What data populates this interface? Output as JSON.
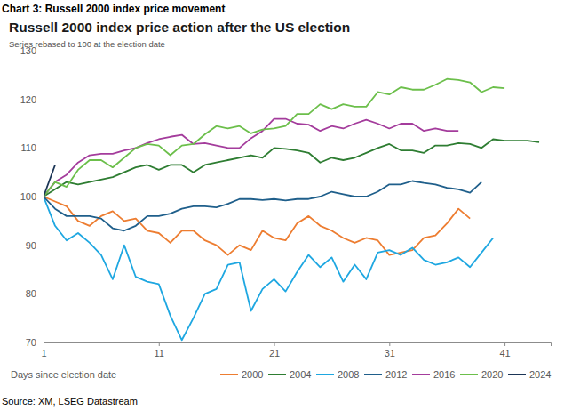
{
  "chart_data": {
    "type": "line",
    "caption": "Chart 3: Russell 2000 index price movement",
    "title": "Russell 2000 index price action after the US election",
    "subtitle": "Series rebased to 100 at the election date",
    "xlabel": "Days since election date",
    "source": "Source: XM, LSEG Datastream",
    "x": [
      1,
      2,
      3,
      4,
      5,
      6,
      7,
      8,
      9,
      10,
      11,
      12,
      13,
      14,
      15,
      16,
      17,
      18,
      19,
      20,
      21,
      22,
      23,
      24,
      25,
      26,
      27,
      28,
      29,
      30,
      31,
      32,
      33,
      34,
      35,
      36,
      37,
      38,
      39,
      40,
      41,
      42,
      43,
      44
    ],
    "xlim": [
      1,
      45
    ],
    "xticks": [
      1,
      11,
      21,
      31,
      41
    ],
    "ylim": [
      70,
      130
    ],
    "yticks": [
      70,
      80,
      90,
      100,
      110,
      120,
      130
    ],
    "grid": false,
    "legend": "bottom",
    "series": [
      {
        "name": "2000",
        "color": "#ed7d31",
        "values": [
          100,
          99,
          98,
          95,
          94,
          96,
          97,
          95,
          95.5,
          93,
          92.5,
          90.5,
          93,
          93,
          91,
          90,
          88,
          90,
          89,
          93,
          91.5,
          91,
          94.5,
          96,
          94,
          93,
          91.5,
          90.5,
          91.5,
          91,
          88,
          88.5,
          89,
          91.5,
          92,
          94.5,
          97.5,
          95.5,
          null,
          null,
          null,
          null,
          null,
          null
        ]
      },
      {
        "name": "2004",
        "color": "#2e7d32",
        "values": [
          100,
          101.5,
          103,
          102.5,
          103,
          103.5,
          104,
          105,
          106,
          106.5,
          105.5,
          106.5,
          106.5,
          105,
          106.5,
          107,
          107.5,
          108,
          108.5,
          108,
          110,
          109.8,
          109.5,
          109,
          107,
          108,
          107.5,
          108,
          109,
          110,
          110.8,
          109.5,
          109.5,
          109,
          110.5,
          110.5,
          111,
          110.8,
          110,
          111.8,
          111.5,
          111.5,
          111.5,
          111.2
        ]
      },
      {
        "name": "2008",
        "color": "#1ea7e1",
        "values": [
          100,
          94,
          91,
          92.5,
          90.5,
          88,
          83,
          90,
          83.5,
          82.5,
          82,
          75.5,
          70.5,
          75,
          80,
          81,
          86,
          86.5,
          76.5,
          81,
          83,
          80.5,
          84.5,
          88,
          85.5,
          87.5,
          82.5,
          86,
          83,
          88.5,
          89,
          88,
          89.5,
          87,
          86,
          86.5,
          87.5,
          85.5,
          88.5,
          91.5,
          null,
          null,
          null,
          null
        ]
      },
      {
        "name": "2012",
        "color": "#1f5f8b",
        "values": [
          100,
          97.5,
          96,
          96,
          96,
          95.5,
          93.5,
          93,
          94,
          96,
          96,
          96.5,
          97.5,
          98,
          98,
          97.8,
          98.5,
          99.5,
          99.5,
          99.3,
          99.5,
          99.2,
          99.5,
          99.5,
          100,
          101,
          100.5,
          100,
          100,
          101,
          102.5,
          102.5,
          103.2,
          102.8,
          102.5,
          101.8,
          101.5,
          100.8,
          103,
          null,
          null,
          null,
          null,
          null
        ]
      },
      {
        "name": "2016",
        "color": "#a43c9c",
        "values": [
          100,
          103,
          104.5,
          107,
          108.5,
          108.8,
          108.8,
          109.5,
          110,
          111,
          111.8,
          112.3,
          112.7,
          110.8,
          111,
          110.5,
          110,
          110,
          112,
          113.5,
          116,
          116,
          115,
          114.8,
          113.5,
          114.5,
          114,
          115,
          115.8,
          115,
          114,
          115,
          115,
          113.5,
          114,
          113.5,
          113.5,
          null,
          null,
          null,
          null,
          null,
          null,
          null
        ]
      },
      {
        "name": "2020",
        "color": "#6cbf4b",
        "values": [
          100,
          103,
          102,
          105.5,
          107.5,
          107.5,
          106,
          108,
          110,
          110.8,
          110.5,
          108.5,
          110.5,
          110.8,
          112.8,
          114.5,
          114,
          114.5,
          113,
          113.8,
          114,
          114.5,
          117,
          117,
          119,
          118,
          119,
          118.5,
          118.5,
          121.5,
          121,
          122.5,
          122,
          122,
          123,
          124.2,
          124,
          123.5,
          121.5,
          122.5,
          122.3,
          null,
          null,
          null
        ]
      },
      {
        "name": "2024",
        "color": "#1b3556",
        "values": [
          100,
          106.5,
          null,
          null,
          null,
          null,
          null,
          null,
          null,
          null,
          null,
          null,
          null,
          null,
          null,
          null,
          null,
          null,
          null,
          null,
          null,
          null,
          null,
          null,
          null,
          null,
          null,
          null,
          null,
          null,
          null,
          null,
          null,
          null,
          null,
          null,
          null,
          null,
          null,
          null,
          null,
          null,
          null,
          null
        ]
      }
    ]
  }
}
